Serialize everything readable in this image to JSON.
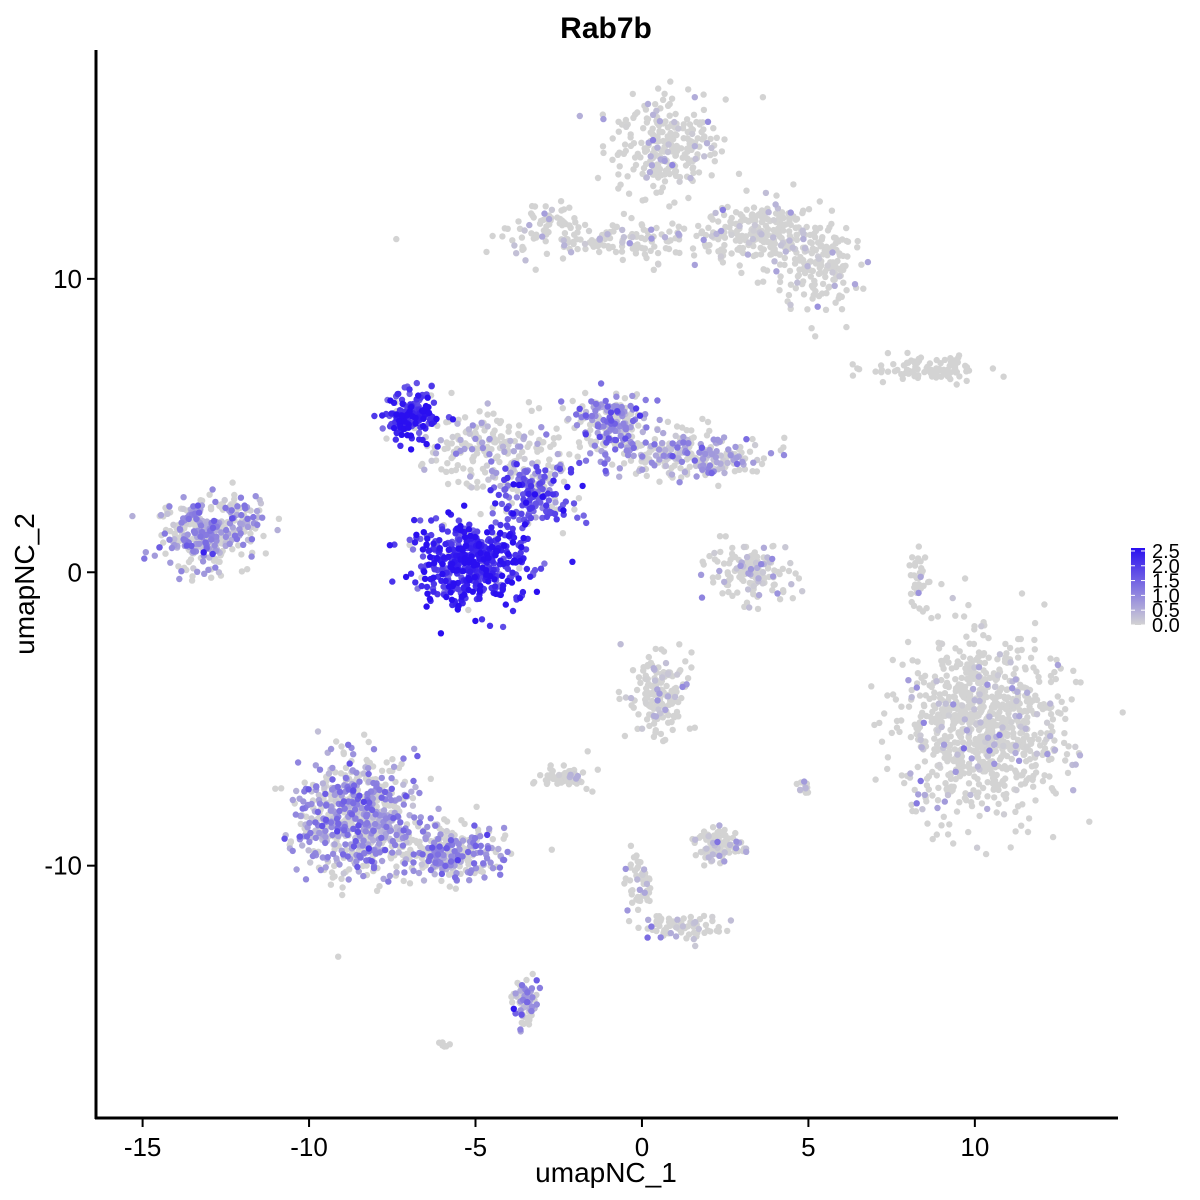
{
  "chart_data": {
    "type": "scatter",
    "title": "Rab7b",
    "xlabel": "umapNC_1",
    "ylabel": "umapNC_2",
    "xlim": [
      -16.4,
      14.3
    ],
    "ylim": [
      -18.6,
      17.8
    ],
    "x_ticks": [
      -15,
      -10,
      -5,
      0,
      5,
      10
    ],
    "x_tick_labels": [
      "-15",
      "-10",
      "-5",
      "0",
      "5",
      "10"
    ],
    "y_ticks": [
      -10,
      0,
      10
    ],
    "y_tick_labels": [
      "-10",
      "0",
      "10"
    ],
    "grid": false,
    "legend_position": "right",
    "color_scale": {
      "low_color": "#d3d3d3",
      "high_color": "#2a0ff0",
      "min": 0.0,
      "max": 2.6,
      "breaks": [
        0.0,
        0.5,
        1.0,
        1.5,
        2.0,
        2.5
      ],
      "break_labels": [
        "0.0",
        "0.5",
        "1.0",
        "1.5",
        "2.0",
        "2.5"
      ]
    },
    "clusters": [
      {
        "x": 0.7,
        "y": 14.5,
        "sx": 1.1,
        "sy": 1.2,
        "n": 260,
        "expr": 0.05
      },
      {
        "x": 3.5,
        "y": 11.5,
        "sx": 1.3,
        "sy": 0.8,
        "n": 240,
        "expr": 0.05
      },
      {
        "x": 5.3,
        "y": 10.3,
        "sx": 0.9,
        "sy": 1.0,
        "n": 140,
        "expr": 0.05
      },
      {
        "x": -0.8,
        "y": 11.3,
        "sx": 2.5,
        "sy": 0.5,
        "n": 150,
        "expr": 0.05
      },
      {
        "x": -2.8,
        "y": 12.0,
        "sx": 0.6,
        "sy": 0.4,
        "n": 40,
        "expr": 0.05
      },
      {
        "x": 8.5,
        "y": 6.9,
        "sx": 1.3,
        "sy": 0.3,
        "n": 90,
        "expr": 0.0
      },
      {
        "x": -13.2,
        "y": 1.2,
        "sx": 1.0,
        "sy": 0.8,
        "n": 300,
        "expr": 0.8
      },
      {
        "x": -12.1,
        "y": 2.0,
        "sx": 0.6,
        "sy": 0.6,
        "n": 60,
        "expr": 0.8
      },
      {
        "x": -6.9,
        "y": 5.3,
        "sx": 0.6,
        "sy": 0.6,
        "n": 170,
        "expr": 2.2
      },
      {
        "x": -5.1,
        "y": 0.3,
        "sx": 1.2,
        "sy": 1.0,
        "n": 480,
        "expr": 2.2
      },
      {
        "x": -3.2,
        "y": 2.7,
        "sx": 0.8,
        "sy": 0.7,
        "n": 170,
        "expr": 1.7
      },
      {
        "x": -1.0,
        "y": 5.0,
        "sx": 0.8,
        "sy": 0.8,
        "n": 200,
        "expr": 1.0
      },
      {
        "x": 1.5,
        "y": 4.0,
        "sx": 1.6,
        "sy": 0.6,
        "n": 260,
        "expr": 0.6
      },
      {
        "x": -4.5,
        "y": 4.2,
        "sx": 1.4,
        "sy": 0.9,
        "n": 200,
        "expr": 0.3
      },
      {
        "x": 3.3,
        "y": 0.0,
        "sx": 0.9,
        "sy": 0.7,
        "n": 140,
        "expr": 0.3
      },
      {
        "x": 8.3,
        "y": -0.2,
        "sx": 0.2,
        "sy": 0.9,
        "n": 40,
        "expr": 0.05
      },
      {
        "x": 10.2,
        "y": -5.3,
        "sx": 1.7,
        "sy": 2.2,
        "n": 900,
        "expr": 0.02
      },
      {
        "x": 0.5,
        "y": -4.2,
        "sx": 0.6,
        "sy": 1.0,
        "n": 160,
        "expr": 0.1
      },
      {
        "x": -2.3,
        "y": -7.0,
        "sx": 0.5,
        "sy": 0.3,
        "n": 60,
        "expr": 0.05
      },
      {
        "x": -8.6,
        "y": -8.4,
        "sx": 1.3,
        "sy": 1.4,
        "n": 700,
        "expr": 0.85
      },
      {
        "x": -5.7,
        "y": -9.6,
        "sx": 1.2,
        "sy": 0.6,
        "n": 260,
        "expr": 0.85
      },
      {
        "x": -3.5,
        "y": -14.6,
        "sx": 0.25,
        "sy": 0.7,
        "n": 70,
        "expr": 0.9
      },
      {
        "x": 2.3,
        "y": -9.3,
        "sx": 0.5,
        "sy": 0.4,
        "n": 90,
        "expr": 0.2
      },
      {
        "x": 1.2,
        "y": -12.1,
        "sx": 0.9,
        "sy": 0.3,
        "n": 70,
        "expr": 0.2
      },
      {
        "x": -0.1,
        "y": -10.7,
        "sx": 0.3,
        "sy": 0.8,
        "n": 50,
        "expr": 0.15
      },
      {
        "x": 4.9,
        "y": -7.3,
        "sx": 0.2,
        "sy": 0.2,
        "n": 15,
        "expr": 0.3
      },
      {
        "x": -6.0,
        "y": -16.1,
        "sx": 0.2,
        "sy": 0.1,
        "n": 8,
        "expr": 0.0
      }
    ]
  }
}
